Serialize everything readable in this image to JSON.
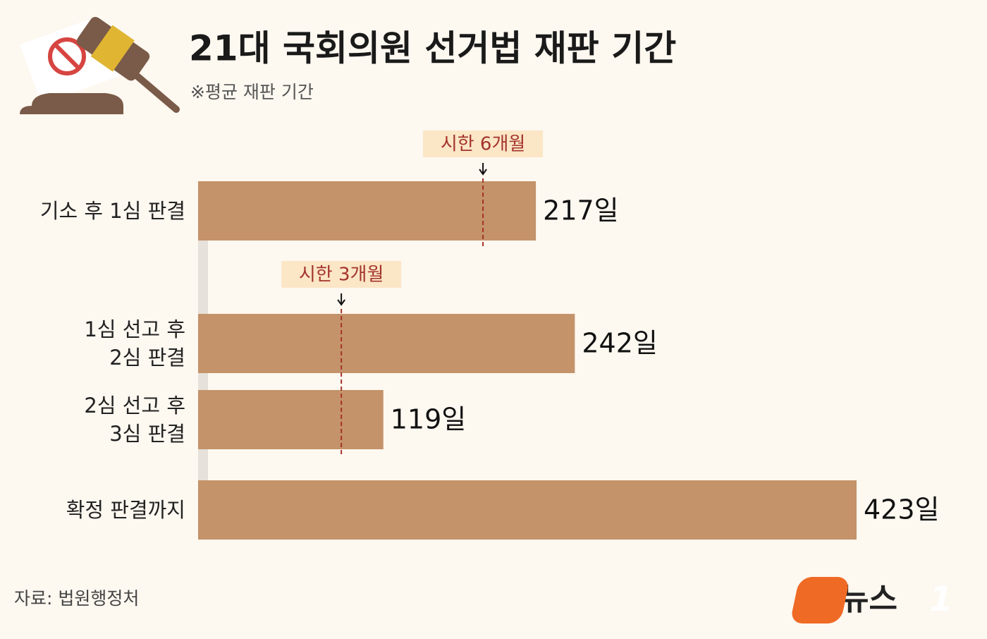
{
  "chart_data": {
    "type": "bar",
    "orientation": "horizontal",
    "title": "21대 국회의원 선거법 재판 기간",
    "subtitle": "※평균 재판 기간",
    "categories": [
      "기소 후 1심 판결",
      "1심 선고 후\n2심 판결",
      "2심 선고 후\n3심 판결",
      "확정 판결까지"
    ],
    "values": [
      217,
      242,
      119,
      423
    ],
    "value_labels": [
      "217일",
      "242일",
      "119일",
      "423일"
    ],
    "color": "#c4936a",
    "xlim": [
      0,
      423
    ],
    "annotations": [
      {
        "text": "시한 6개월",
        "value": 183
      },
      {
        "text": "시한 3개월",
        "value": 92
      }
    ],
    "annotation_color": "#a3332a",
    "source": "자료: 법원행정처",
    "logo": {
      "text": "뉴스",
      "badge": "1"
    }
  }
}
